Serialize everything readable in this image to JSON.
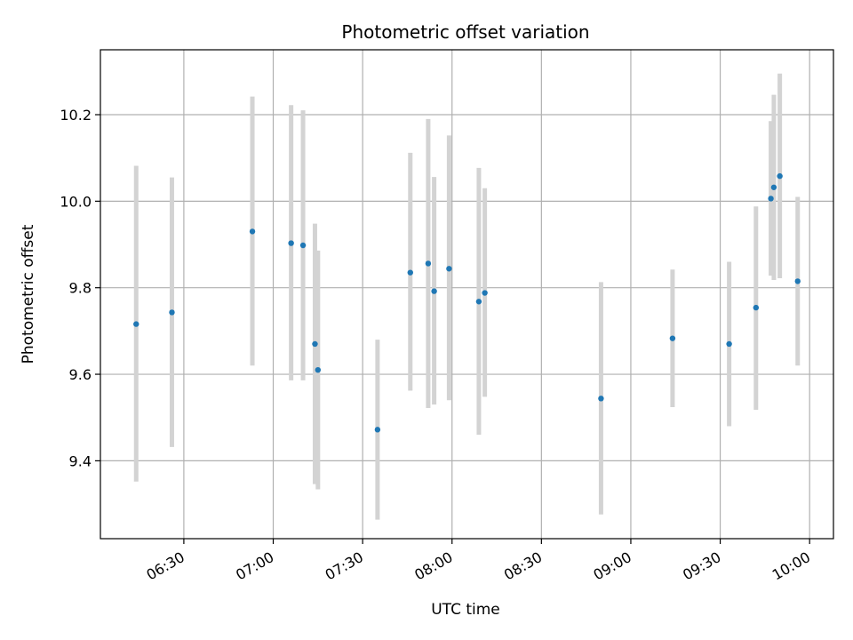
{
  "chart_data": {
    "type": "scatter",
    "title": "Photometric offset variation",
    "xlabel": "UTC time",
    "ylabel": "Photometric offset",
    "x_ticks": [
      "06:30",
      "07:00",
      "07:30",
      "08:00",
      "08:30",
      "09:00",
      "09:30",
      "10:00"
    ],
    "y_ticks": [
      "9.4",
      "9.6",
      "9.8",
      "10.0",
      "10.2"
    ],
    "xlim": [
      "06:02",
      "10:08"
    ],
    "ylim": [
      9.22,
      10.35
    ],
    "grid": true,
    "colors": {
      "point": "#1f77b4",
      "errorbar": "#d3d3d3",
      "grid": "#b0b0b0"
    },
    "series": [
      {
        "points": [
          {
            "x": "06:14",
            "y": 9.716,
            "lower": 9.352,
            "upper": 10.082
          },
          {
            "x": "06:26",
            "y": 9.743,
            "lower": 9.432,
            "upper": 10.055
          },
          {
            "x": "06:53",
            "y": 9.93,
            "lower": 9.62,
            "upper": 10.242
          },
          {
            "x": "07:06",
            "y": 9.903,
            "lower": 9.586,
            "upper": 10.222
          },
          {
            "x": "07:10",
            "y": 9.898,
            "lower": 9.586,
            "upper": 10.21
          },
          {
            "x": "07:14",
            "y": 9.67,
            "lower": 9.346,
            "upper": 9.948
          },
          {
            "x": "07:15",
            "y": 9.61,
            "lower": 9.334,
            "upper": 9.886
          },
          {
            "x": "07:35",
            "y": 9.472,
            "lower": 9.264,
            "upper": 9.68
          },
          {
            "x": "07:46",
            "y": 9.835,
            "lower": 9.562,
            "upper": 10.112
          },
          {
            "x": "07:52",
            "y": 9.856,
            "lower": 9.522,
            "upper": 10.19
          },
          {
            "x": "07:54",
            "y": 9.792,
            "lower": 9.53,
            "upper": 10.056
          },
          {
            "x": "07:59",
            "y": 9.844,
            "lower": 9.54,
            "upper": 10.152
          },
          {
            "x": "08:09",
            "y": 9.768,
            "lower": 9.46,
            "upper": 10.077
          },
          {
            "x": "08:11",
            "y": 9.788,
            "lower": 9.548,
            "upper": 10.03
          },
          {
            "x": "08:50",
            "y": 9.544,
            "lower": 9.276,
            "upper": 9.813
          },
          {
            "x": "09:14",
            "y": 9.683,
            "lower": 9.524,
            "upper": 9.842
          },
          {
            "x": "09:33",
            "y": 9.67,
            "lower": 9.48,
            "upper": 9.86
          },
          {
            "x": "09:42",
            "y": 9.754,
            "lower": 9.518,
            "upper": 9.988
          },
          {
            "x": "09:47",
            "y": 10.006,
            "lower": 9.828,
            "upper": 10.185
          },
          {
            "x": "09:48",
            "y": 10.032,
            "lower": 9.818,
            "upper": 10.246
          },
          {
            "x": "09:50",
            "y": 10.058,
            "lower": 9.822,
            "upper": 10.295
          },
          {
            "x": "09:56",
            "y": 9.815,
            "lower": 9.62,
            "upper": 10.01
          }
        ]
      }
    ]
  }
}
